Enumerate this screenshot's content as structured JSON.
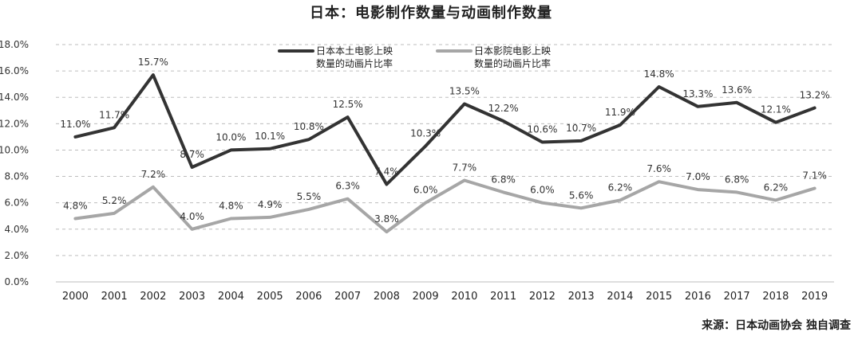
{
  "chart_data": {
    "type": "line",
    "title": "日本：电影制作数量与动画制作数量",
    "x": [
      "2000",
      "2001",
      "2002",
      "2003",
      "2004",
      "2005",
      "2006",
      "2007",
      "2008",
      "2009",
      "2010",
      "2011",
      "2012",
      "2013",
      "2014",
      "2015",
      "2016",
      "2017",
      "2018",
      "2019"
    ],
    "y_ticks": [
      "0.0%",
      "2.0%",
      "4.0%",
      "6.0%",
      "8.0%",
      "10.0%",
      "12.0%",
      "14.0%",
      "16.0%",
      "18.0%"
    ],
    "ylim": [
      0,
      18
    ],
    "grid": "horizontal dashed",
    "legend_position": "top-left",
    "series": [
      {
        "name_line1": "日本本土电影上映",
        "name_line2": "数量的动画片比率",
        "color": "#333333",
        "values": [
          11.0,
          11.7,
          15.7,
          8.7,
          10.0,
          10.1,
          10.8,
          12.5,
          7.4,
          10.3,
          13.5,
          12.2,
          10.6,
          10.7,
          11.9,
          14.8,
          13.3,
          13.6,
          12.1,
          13.2
        ],
        "labels": [
          "11.0%",
          "11.7%",
          "15.7%",
          "8.7%",
          "10.0%",
          "10.1%",
          "10.8%",
          "12.5%",
          "7.4%",
          "10.3%",
          "13.5%",
          "12.2%",
          "10.6%",
          "10.7%",
          "11.9%",
          "14.8%",
          "13.3%",
          "13.6%",
          "12.1%",
          "13.2%"
        ]
      },
      {
        "name_line1": "日本影院电影上映",
        "name_line2": "数量的动画片比率",
        "color": "#a6a6a6",
        "values": [
          4.8,
          5.2,
          7.2,
          4.0,
          4.8,
          4.9,
          5.5,
          6.3,
          3.8,
          6.0,
          7.7,
          6.8,
          6.0,
          5.6,
          6.2,
          7.6,
          7.0,
          6.8,
          6.2,
          7.1
        ],
        "labels": [
          "4.8%",
          "5.2%",
          "7.2%",
          "4.0%",
          "4.8%",
          "4.9%",
          "5.5%",
          "6.3%",
          "3.8%",
          "6.0%",
          "7.7%",
          "6.8%",
          "6.0%",
          "5.6%",
          "6.2%",
          "7.6%",
          "7.0%",
          "6.8%",
          "6.2%",
          "7.1%"
        ]
      }
    ]
  },
  "source_note": "来源：日本动画协会 独自调查"
}
